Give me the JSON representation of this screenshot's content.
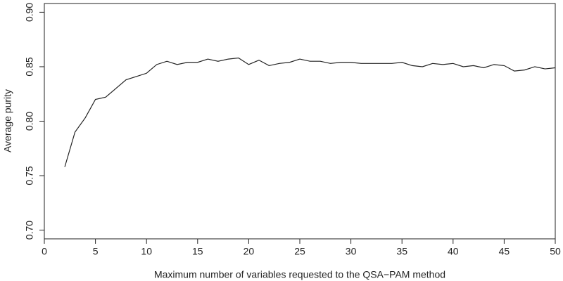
{
  "chart_data": {
    "type": "line",
    "x_label": "Maximum number of variables requested to the QSA−PAM method",
    "y_label": "Average purity",
    "x": [
      2,
      3,
      4,
      5,
      6,
      7,
      8,
      9,
      10,
      11,
      12,
      13,
      14,
      15,
      16,
      17,
      18,
      19,
      20,
      21,
      22,
      23,
      24,
      25,
      26,
      27,
      28,
      29,
      30,
      31,
      32,
      33,
      34,
      35,
      36,
      37,
      38,
      39,
      40,
      41,
      42,
      43,
      44,
      45,
      46,
      47,
      48,
      49,
      50
    ],
    "series": [
      {
        "color": "#222222",
        "values": [
          0.758,
          0.79,
          0.803,
          0.82,
          0.822,
          0.83,
          0.838,
          0.841,
          0.844,
          0.852,
          0.855,
          0.852,
          0.854,
          0.854,
          0.857,
          0.855,
          0.857,
          0.858,
          0.852,
          0.856,
          0.851,
          0.853,
          0.854,
          0.857,
          0.855,
          0.855,
          0.853,
          0.854,
          0.854,
          0.853,
          0.853,
          0.853,
          0.853,
          0.854,
          0.851,
          0.85,
          0.853,
          0.852,
          0.853,
          0.85,
          0.851,
          0.849,
          0.852,
          0.851,
          0.846,
          0.847,
          0.85,
          0.848,
          0.849
        ]
      }
    ],
    "xlim": [
      0,
      50
    ],
    "xticks": [
      0,
      5,
      10,
      15,
      20,
      25,
      30,
      35,
      40,
      45,
      50
    ],
    "ylim": [
      0.692,
      0.908
    ],
    "yticks": [
      {
        "value": 0.7,
        "label": "0.70"
      },
      0.75,
      {
        "value": 0.8,
        "label": "0.80"
      },
      0.85,
      {
        "value": 0.9,
        "label": "0.90"
      }
    ]
  }
}
